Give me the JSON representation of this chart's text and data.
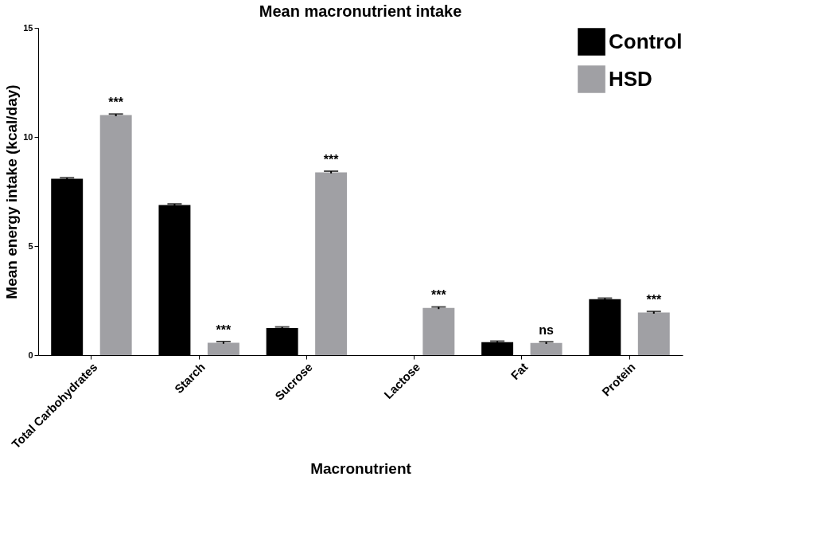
{
  "chart_data": {
    "type": "bar",
    "title": "Mean macronutrient intake",
    "xlabel": "Macronutrient",
    "ylabel": "Mean energy intake (kcal/day)",
    "categories": [
      "Total Carbohydrates",
      "Starch",
      "Sucrose",
      "Lactose",
      "Fat",
      "Protein"
    ],
    "series": [
      {
        "name": "Control",
        "color": "#000000",
        "values": [
          8.08,
          6.88,
          1.24,
          0,
          0.59,
          2.56
        ],
        "errors": [
          0.05,
          0.05,
          0.05,
          null,
          0.05,
          0.05
        ]
      },
      {
        "name": "HSD",
        "color": "#a0a0a4",
        "values": [
          11.0,
          0.57,
          8.38,
          2.16,
          0.56,
          1.95
        ],
        "errors": [
          0.05,
          0.05,
          0.05,
          0.05,
          0.05,
          0.05
        ]
      }
    ],
    "ylim": [
      0,
      15
    ],
    "yticks": [
      0,
      5,
      10,
      15
    ],
    "grid": false,
    "legend": "top right",
    "annotations": [
      "***",
      "***",
      "***",
      "***",
      "ns",
      "***"
    ]
  }
}
